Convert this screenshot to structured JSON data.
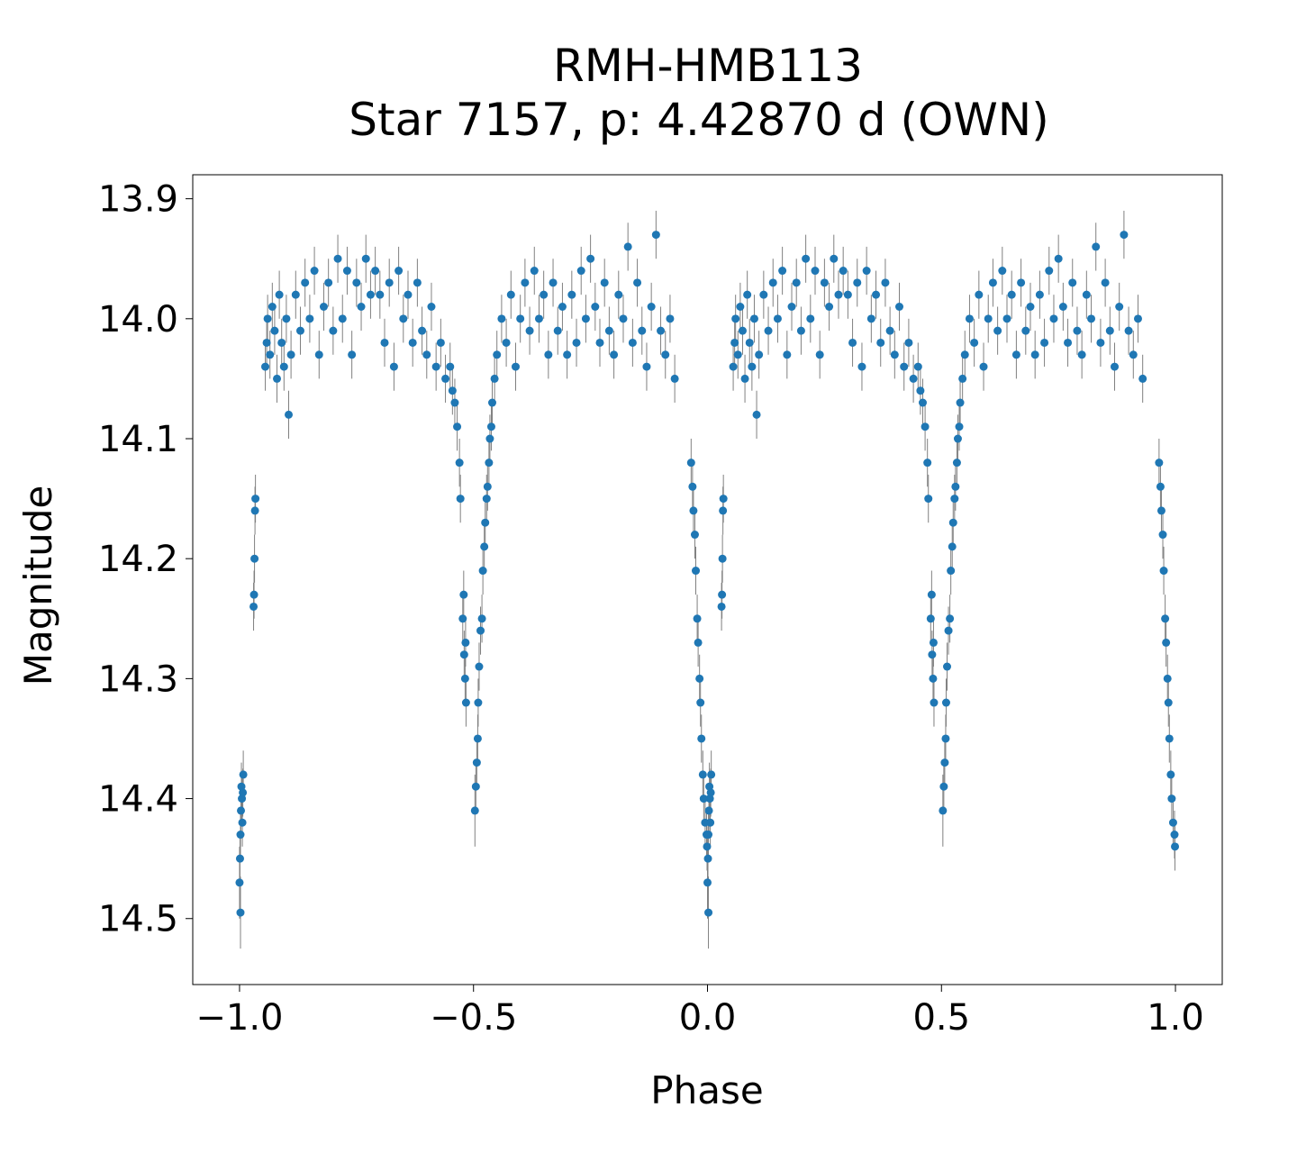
{
  "chart_data": {
    "type": "scatter",
    "title": [
      "RMH-HMB113",
      "Star 7157, p: 4.42870 d (OWN)"
    ],
    "xlabel": "Phase",
    "ylabel": "Magnitude",
    "xlim": [
      -1.1,
      1.1
    ],
    "ylim": [
      14.555,
      13.88
    ],
    "y_inverted": true,
    "grid": false,
    "xticks": [
      -1.0,
      -0.5,
      0.0,
      0.5,
      1.0
    ],
    "xtick_labels": [
      "−1.0",
      "−0.5",
      "0.0",
      "0.5",
      "1.0"
    ],
    "yticks": [
      13.9,
      14.0,
      14.1,
      14.2,
      14.3,
      14.4,
      14.5
    ],
    "ytick_labels": [
      "13.9",
      "14.0",
      "14.1",
      "14.2",
      "14.3",
      "14.4",
      "14.5"
    ],
    "colors": {
      "marker": "#1f77b4",
      "errorbar": "#808080"
    },
    "points_format": [
      "phase",
      "magnitude",
      "error"
    ],
    "points": [
      [
        0.0,
        14.47,
        0.03
      ],
      [
        0.001,
        14.45,
        0.02
      ],
      [
        0.002,
        14.43,
        0.02
      ],
      [
        0.003,
        14.41,
        0.02
      ],
      [
        0.004,
        14.39,
        0.02
      ],
      [
        0.005,
        14.4,
        0.02
      ],
      [
        0.006,
        14.42,
        0.02
      ],
      [
        0.007,
        14.395,
        0.02
      ],
      [
        0.008,
        14.38,
        0.02
      ],
      [
        0.002,
        14.495,
        0.03
      ],
      [
        0.03,
        14.24,
        0.02
      ],
      [
        0.031,
        14.23,
        0.02
      ],
      [
        0.032,
        14.2,
        0.02
      ],
      [
        0.033,
        14.16,
        0.02
      ],
      [
        0.034,
        14.15,
        0.02
      ],
      [
        0.055,
        14.04,
        0.02
      ],
      [
        0.058,
        14.02,
        0.02
      ],
      [
        0.06,
        14.0,
        0.02
      ],
      [
        0.065,
        14.03,
        0.02
      ],
      [
        0.07,
        13.99,
        0.02
      ],
      [
        0.075,
        14.01,
        0.02
      ],
      [
        0.08,
        14.05,
        0.02
      ],
      [
        0.085,
        13.98,
        0.02
      ],
      [
        0.09,
        14.02,
        0.02
      ],
      [
        0.095,
        14.04,
        0.02
      ],
      [
        0.1,
        14.0,
        0.02
      ],
      [
        0.105,
        14.08,
        0.02
      ],
      [
        0.11,
        14.03,
        0.02
      ],
      [
        0.12,
        13.98,
        0.02
      ],
      [
        0.13,
        14.01,
        0.02
      ],
      [
        0.14,
        13.97,
        0.02
      ],
      [
        0.15,
        14.0,
        0.02
      ],
      [
        0.16,
        13.96,
        0.02
      ],
      [
        0.17,
        14.03,
        0.02
      ],
      [
        0.18,
        13.99,
        0.02
      ],
      [
        0.19,
        13.97,
        0.02
      ],
      [
        0.2,
        14.01,
        0.02
      ],
      [
        0.21,
        13.95,
        0.02
      ],
      [
        0.22,
        14.0,
        0.02
      ],
      [
        0.23,
        13.96,
        0.02
      ],
      [
        0.24,
        14.03,
        0.02
      ],
      [
        0.25,
        13.97,
        0.02
      ],
      [
        0.26,
        13.99,
        0.02
      ],
      [
        0.27,
        13.95,
        0.02
      ],
      [
        0.28,
        13.98,
        0.02
      ],
      [
        0.29,
        13.96,
        0.02
      ],
      [
        0.3,
        13.98,
        0.02
      ],
      [
        0.31,
        14.02,
        0.02
      ],
      [
        0.32,
        13.97,
        0.02
      ],
      [
        0.33,
        14.04,
        0.02
      ],
      [
        0.34,
        13.96,
        0.02
      ],
      [
        0.35,
        14.0,
        0.02
      ],
      [
        0.36,
        13.98,
        0.02
      ],
      [
        0.37,
        14.02,
        0.02
      ],
      [
        0.38,
        13.97,
        0.02
      ],
      [
        0.39,
        14.01,
        0.02
      ],
      [
        0.4,
        14.03,
        0.02
      ],
      [
        0.41,
        13.99,
        0.02
      ],
      [
        0.42,
        14.04,
        0.02
      ],
      [
        0.43,
        14.02,
        0.02
      ],
      [
        0.44,
        14.05,
        0.02
      ],
      [
        0.45,
        14.04,
        0.02
      ],
      [
        0.455,
        14.06,
        0.02
      ],
      [
        0.46,
        14.07,
        0.02
      ],
      [
        0.465,
        14.09,
        0.02
      ],
      [
        0.47,
        14.12,
        0.02
      ],
      [
        0.472,
        14.15,
        0.02
      ],
      [
        0.477,
        14.25,
        0.02
      ],
      [
        0.479,
        14.23,
        0.02
      ],
      [
        0.48,
        14.28,
        0.02
      ],
      [
        0.482,
        14.3,
        0.02
      ],
      [
        0.484,
        14.32,
        0.02
      ],
      [
        0.483,
        14.27,
        0.02
      ],
      [
        0.503,
        14.41,
        0.03
      ],
      [
        0.505,
        14.39,
        0.02
      ],
      [
        0.507,
        14.37,
        0.02
      ],
      [
        0.509,
        14.35,
        0.02
      ],
      [
        0.51,
        14.32,
        0.02
      ],
      [
        0.512,
        14.29,
        0.02
      ],
      [
        0.515,
        14.26,
        0.02
      ],
      [
        0.518,
        14.25,
        0.02
      ],
      [
        0.52,
        14.21,
        0.02
      ],
      [
        0.523,
        14.19,
        0.02
      ],
      [
        0.525,
        14.17,
        0.02
      ],
      [
        0.528,
        14.15,
        0.02
      ],
      [
        0.53,
        14.14,
        0.02
      ],
      [
        0.533,
        14.12,
        0.02
      ],
      [
        0.535,
        14.1,
        0.02
      ],
      [
        0.538,
        14.09,
        0.02
      ],
      [
        0.54,
        14.07,
        0.02
      ],
      [
        0.545,
        14.05,
        0.02
      ],
      [
        0.55,
        14.03,
        0.02
      ],
      [
        0.56,
        14.0,
        0.02
      ],
      [
        0.57,
        14.02,
        0.02
      ],
      [
        0.58,
        13.98,
        0.02
      ],
      [
        0.59,
        14.04,
        0.02
      ],
      [
        0.6,
        14.0,
        0.02
      ],
      [
        0.61,
        13.97,
        0.02
      ],
      [
        0.62,
        14.01,
        0.02
      ],
      [
        0.63,
        13.96,
        0.02
      ],
      [
        0.64,
        14.0,
        0.02
      ],
      [
        0.65,
        13.98,
        0.02
      ],
      [
        0.66,
        14.03,
        0.02
      ],
      [
        0.67,
        13.97,
        0.02
      ],
      [
        0.68,
        14.01,
        0.02
      ],
      [
        0.69,
        13.99,
        0.02
      ],
      [
        0.7,
        14.03,
        0.02
      ],
      [
        0.71,
        13.98,
        0.02
      ],
      [
        0.72,
        14.02,
        0.02
      ],
      [
        0.73,
        13.96,
        0.02
      ],
      [
        0.74,
        14.0,
        0.02
      ],
      [
        0.75,
        13.95,
        0.02
      ],
      [
        0.76,
        13.99,
        0.02
      ],
      [
        0.77,
        14.02,
        0.02
      ],
      [
        0.78,
        13.97,
        0.02
      ],
      [
        0.79,
        14.01,
        0.02
      ],
      [
        0.8,
        14.03,
        0.02
      ],
      [
        0.81,
        13.98,
        0.02
      ],
      [
        0.82,
        14.0,
        0.02
      ],
      [
        0.83,
        13.94,
        0.02
      ],
      [
        0.84,
        14.02,
        0.02
      ],
      [
        0.85,
        13.97,
        0.02
      ],
      [
        0.86,
        14.01,
        0.02
      ],
      [
        0.87,
        14.04,
        0.02
      ],
      [
        0.88,
        13.99,
        0.02
      ],
      [
        0.89,
        13.93,
        0.02
      ],
      [
        0.9,
        14.01,
        0.02
      ],
      [
        0.91,
        14.03,
        0.02
      ],
      [
        0.92,
        14.0,
        0.02
      ],
      [
        0.93,
        14.05,
        0.02
      ],
      [
        0.965,
        14.12,
        0.02
      ],
      [
        0.968,
        14.14,
        0.02
      ],
      [
        0.97,
        14.16,
        0.02
      ],
      [
        0.973,
        14.18,
        0.02
      ],
      [
        0.975,
        14.21,
        0.02
      ],
      [
        0.978,
        14.25,
        0.02
      ],
      [
        0.98,
        14.27,
        0.02
      ],
      [
        0.983,
        14.3,
        0.02
      ],
      [
        0.985,
        14.32,
        0.02
      ],
      [
        0.987,
        14.35,
        0.02
      ],
      [
        0.99,
        14.38,
        0.02
      ],
      [
        0.992,
        14.4,
        0.02
      ],
      [
        0.995,
        14.42,
        0.02
      ],
      [
        0.998,
        14.43,
        0.02
      ],
      [
        0.999,
        14.44,
        0.02
      ],
      [
        -1.0,
        14.47,
        0.03
      ],
      [
        -0.999,
        14.45,
        0.02
      ],
      [
        -0.998,
        14.43,
        0.02
      ],
      [
        -0.997,
        14.41,
        0.02
      ],
      [
        -0.996,
        14.39,
        0.02
      ],
      [
        -0.995,
        14.4,
        0.02
      ],
      [
        -0.994,
        14.42,
        0.02
      ],
      [
        -0.993,
        14.395,
        0.02
      ],
      [
        -0.992,
        14.38,
        0.02
      ],
      [
        -0.998,
        14.495,
        0.03
      ],
      [
        -0.97,
        14.24,
        0.02
      ],
      [
        -0.969,
        14.23,
        0.02
      ],
      [
        -0.968,
        14.2,
        0.02
      ],
      [
        -0.967,
        14.16,
        0.02
      ],
      [
        -0.966,
        14.15,
        0.02
      ],
      [
        -0.945,
        14.04,
        0.02
      ],
      [
        -0.942,
        14.02,
        0.02
      ],
      [
        -0.94,
        14.0,
        0.02
      ],
      [
        -0.935,
        14.03,
        0.02
      ],
      [
        -0.93,
        13.99,
        0.02
      ],
      [
        -0.925,
        14.01,
        0.02
      ],
      [
        -0.92,
        14.05,
        0.02
      ],
      [
        -0.915,
        13.98,
        0.02
      ],
      [
        -0.91,
        14.02,
        0.02
      ],
      [
        -0.905,
        14.04,
        0.02
      ],
      [
        -0.9,
        14.0,
        0.02
      ],
      [
        -0.895,
        14.08,
        0.02
      ],
      [
        -0.89,
        14.03,
        0.02
      ],
      [
        -0.88,
        13.98,
        0.02
      ],
      [
        -0.87,
        14.01,
        0.02
      ],
      [
        -0.86,
        13.97,
        0.02
      ],
      [
        -0.85,
        14.0,
        0.02
      ],
      [
        -0.84,
        13.96,
        0.02
      ],
      [
        -0.83,
        14.03,
        0.02
      ],
      [
        -0.82,
        13.99,
        0.02
      ],
      [
        -0.81,
        13.97,
        0.02
      ],
      [
        -0.8,
        14.01,
        0.02
      ],
      [
        -0.79,
        13.95,
        0.02
      ],
      [
        -0.78,
        14.0,
        0.02
      ],
      [
        -0.77,
        13.96,
        0.02
      ],
      [
        -0.76,
        14.03,
        0.02
      ],
      [
        -0.75,
        13.97,
        0.02
      ],
      [
        -0.74,
        13.99,
        0.02
      ],
      [
        -0.73,
        13.95,
        0.02
      ],
      [
        -0.72,
        13.98,
        0.02
      ],
      [
        -0.71,
        13.96,
        0.02
      ],
      [
        -0.7,
        13.98,
        0.02
      ],
      [
        -0.69,
        14.02,
        0.02
      ],
      [
        -0.68,
        13.97,
        0.02
      ],
      [
        -0.67,
        14.04,
        0.02
      ],
      [
        -0.66,
        13.96,
        0.02
      ],
      [
        -0.65,
        14.0,
        0.02
      ],
      [
        -0.64,
        13.98,
        0.02
      ],
      [
        -0.63,
        14.02,
        0.02
      ],
      [
        -0.62,
        13.97,
        0.02
      ],
      [
        -0.61,
        14.01,
        0.02
      ],
      [
        -0.6,
        14.03,
        0.02
      ],
      [
        -0.59,
        13.99,
        0.02
      ],
      [
        -0.58,
        14.04,
        0.02
      ],
      [
        -0.57,
        14.02,
        0.02
      ],
      [
        -0.56,
        14.05,
        0.02
      ],
      [
        -0.55,
        14.04,
        0.02
      ],
      [
        -0.545,
        14.06,
        0.02
      ],
      [
        -0.54,
        14.07,
        0.02
      ],
      [
        -0.535,
        14.09,
        0.02
      ],
      [
        -0.53,
        14.12,
        0.02
      ],
      [
        -0.528,
        14.15,
        0.02
      ],
      [
        -0.523,
        14.25,
        0.02
      ],
      [
        -0.521,
        14.23,
        0.02
      ],
      [
        -0.52,
        14.28,
        0.02
      ],
      [
        -0.518,
        14.3,
        0.02
      ],
      [
        -0.516,
        14.32,
        0.02
      ],
      [
        -0.517,
        14.27,
        0.02
      ],
      [
        -0.497,
        14.41,
        0.03
      ],
      [
        -0.495,
        14.39,
        0.02
      ],
      [
        -0.493,
        14.37,
        0.02
      ],
      [
        -0.491,
        14.35,
        0.02
      ],
      [
        -0.49,
        14.32,
        0.02
      ],
      [
        -0.488,
        14.29,
        0.02
      ],
      [
        -0.485,
        14.26,
        0.02
      ],
      [
        -0.482,
        14.25,
        0.02
      ],
      [
        -0.48,
        14.21,
        0.02
      ],
      [
        -0.477,
        14.19,
        0.02
      ],
      [
        -0.475,
        14.17,
        0.02
      ],
      [
        -0.472,
        14.15,
        0.02
      ],
      [
        -0.47,
        14.14,
        0.02
      ],
      [
        -0.467,
        14.12,
        0.02
      ],
      [
        -0.465,
        14.1,
        0.02
      ],
      [
        -0.462,
        14.09,
        0.02
      ],
      [
        -0.46,
        14.07,
        0.02
      ],
      [
        -0.455,
        14.05,
        0.02
      ],
      [
        -0.45,
        14.03,
        0.02
      ],
      [
        -0.44,
        14.0,
        0.02
      ],
      [
        -0.43,
        14.02,
        0.02
      ],
      [
        -0.42,
        13.98,
        0.02
      ],
      [
        -0.41,
        14.04,
        0.02
      ],
      [
        -0.4,
        14.0,
        0.02
      ],
      [
        -0.39,
        13.97,
        0.02
      ],
      [
        -0.38,
        14.01,
        0.02
      ],
      [
        -0.37,
        13.96,
        0.02
      ],
      [
        -0.36,
        14.0,
        0.02
      ],
      [
        -0.35,
        13.98,
        0.02
      ],
      [
        -0.34,
        14.03,
        0.02
      ],
      [
        -0.33,
        13.97,
        0.02
      ],
      [
        -0.32,
        14.01,
        0.02
      ],
      [
        -0.31,
        13.99,
        0.02
      ],
      [
        -0.3,
        14.03,
        0.02
      ],
      [
        -0.29,
        13.98,
        0.02
      ],
      [
        -0.28,
        14.02,
        0.02
      ],
      [
        -0.27,
        13.96,
        0.02
      ],
      [
        -0.26,
        14.0,
        0.02
      ],
      [
        -0.25,
        13.95,
        0.02
      ],
      [
        -0.24,
        13.99,
        0.02
      ],
      [
        -0.23,
        14.02,
        0.02
      ],
      [
        -0.22,
        13.97,
        0.02
      ],
      [
        -0.21,
        14.01,
        0.02
      ],
      [
        -0.2,
        14.03,
        0.02
      ],
      [
        -0.19,
        13.98,
        0.02
      ],
      [
        -0.18,
        14.0,
        0.02
      ],
      [
        -0.17,
        13.94,
        0.02
      ],
      [
        -0.16,
        14.02,
        0.02
      ],
      [
        -0.15,
        13.97,
        0.02
      ],
      [
        -0.14,
        14.01,
        0.02
      ],
      [
        -0.13,
        14.04,
        0.02
      ],
      [
        -0.12,
        13.99,
        0.02
      ],
      [
        -0.11,
        13.93,
        0.02
      ],
      [
        -0.1,
        14.01,
        0.02
      ],
      [
        -0.09,
        14.03,
        0.02
      ],
      [
        -0.08,
        14.0,
        0.02
      ],
      [
        -0.07,
        14.05,
        0.02
      ],
      [
        -0.035,
        14.12,
        0.02
      ],
      [
        -0.032,
        14.14,
        0.02
      ],
      [
        -0.03,
        14.16,
        0.02
      ],
      [
        -0.027,
        14.18,
        0.02
      ],
      [
        -0.025,
        14.21,
        0.02
      ],
      [
        -0.022,
        14.25,
        0.02
      ],
      [
        -0.02,
        14.27,
        0.02
      ],
      [
        -0.017,
        14.3,
        0.02
      ],
      [
        -0.015,
        14.32,
        0.02
      ],
      [
        -0.013,
        14.35,
        0.02
      ],
      [
        -0.01,
        14.38,
        0.02
      ],
      [
        -0.008,
        14.4,
        0.02
      ],
      [
        -0.005,
        14.42,
        0.02
      ],
      [
        -0.002,
        14.43,
        0.02
      ],
      [
        -0.001,
        14.44,
        0.02
      ]
    ]
  }
}
